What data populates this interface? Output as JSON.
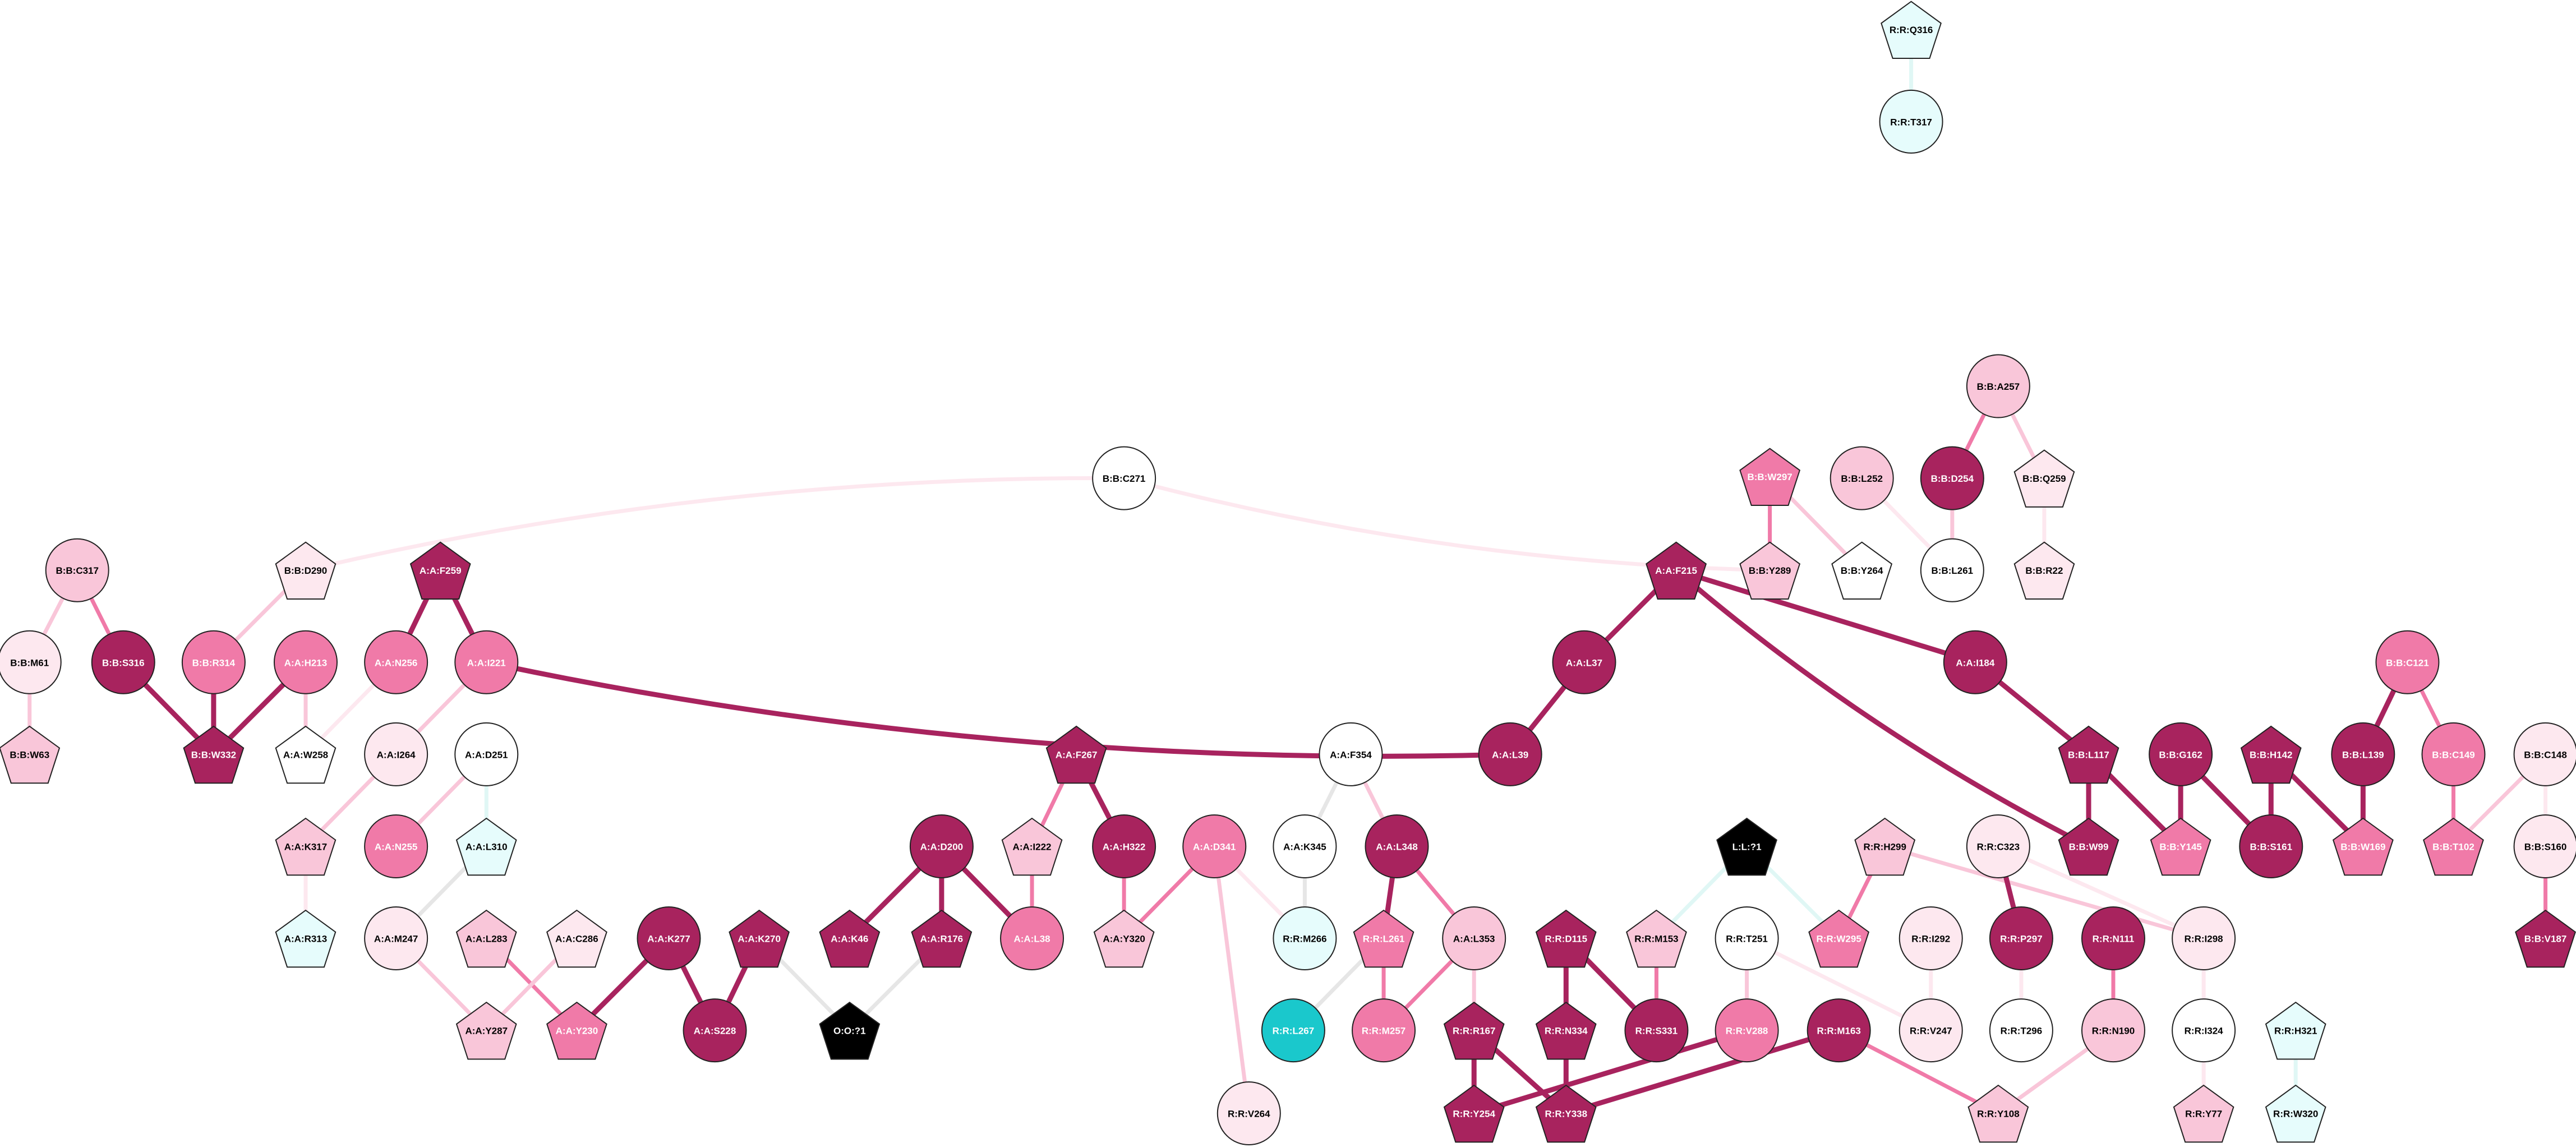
{
  "nodes": [
    {
      "label": "R:R:Q316",
      "shape": "pentagon",
      "color": "#e6fcfc"
    },
    {
      "label": "R:R:T317",
      "shape": "circle",
      "color": "#e6fcfc"
    },
    {
      "label": "B:B:A257",
      "shape": "circle",
      "color": "#f9c6d9"
    },
    {
      "label": "B:B:W297",
      "shape": "pentagon",
      "color": "#f07aa8"
    },
    {
      "label": "B:B:L252",
      "shape": "circle",
      "color": "#f9c6d9"
    },
    {
      "label": "B:B:D254",
      "shape": "circle",
      "color": "#a8235e"
    },
    {
      "label": "B:B:Q259",
      "shape": "pentagon",
      "color": "#fde8ef"
    },
    {
      "label": "B:B:C271",
      "shape": "circle",
      "color": "#ffffff"
    },
    {
      "label": "B:B:Y289",
      "shape": "pentagon",
      "color": "#f9c6d9"
    },
    {
      "label": "B:B:Y264",
      "shape": "pentagon",
      "color": "#ffffff"
    },
    {
      "label": "B:B:L261",
      "shape": "circle",
      "color": "#ffffff"
    },
    {
      "label": "B:B:R22",
      "shape": "pentagon",
      "color": "#fde8ef"
    },
    {
      "label": "B:B:C317",
      "shape": "circle",
      "color": "#f9c6d9"
    },
    {
      "label": "B:B:D290",
      "shape": "pentagon",
      "color": "#fde8ef"
    },
    {
      "label": "A:A:F259",
      "shape": "pentagon",
      "color": "#a8235e"
    },
    {
      "label": "A:A:F215",
      "shape": "pentagon",
      "color": "#a8235e"
    },
    {
      "label": "B:B:M61",
      "shape": "circle",
      "color": "#fde8ef"
    },
    {
      "label": "B:B:S316",
      "shape": "circle",
      "color": "#a8235e"
    },
    {
      "label": "B:B:R314",
      "shape": "circle",
      "color": "#f07aa8"
    },
    {
      "label": "A:A:H213",
      "shape": "circle",
      "color": "#f07aa8"
    },
    {
      "label": "A:A:N256",
      "shape": "circle",
      "color": "#f07aa8"
    },
    {
      "label": "A:A:I221",
      "shape": "circle",
      "color": "#f07aa8"
    },
    {
      "label": "A:A:L37",
      "shape": "circle",
      "color": "#a8235e"
    },
    {
      "label": "A:A:I184",
      "shape": "circle",
      "color": "#a8235e"
    },
    {
      "label": "B:B:C121",
      "shape": "circle",
      "color": "#f07aa8"
    },
    {
      "label": "B:B:W63",
      "shape": "pentagon",
      "color": "#f9c6d9"
    },
    {
      "label": "B:B:W332",
      "shape": "pentagon",
      "color": "#a8235e"
    },
    {
      "label": "A:A:W258",
      "shape": "pentagon",
      "color": "#ffffff"
    },
    {
      "label": "A:A:I264",
      "shape": "circle",
      "color": "#fde8ef"
    },
    {
      "label": "A:A:D251",
      "shape": "circle",
      "color": "#ffffff"
    },
    {
      "label": "A:A:F267",
      "shape": "pentagon",
      "color": "#a8235e"
    },
    {
      "label": "A:A:F354",
      "shape": "circle",
      "color": "#ffffff"
    },
    {
      "label": "A:A:L39",
      "shape": "circle",
      "color": "#a8235e"
    },
    {
      "label": "B:B:L117",
      "shape": "pentagon",
      "color": "#a8235e"
    },
    {
      "label": "B:B:G162",
      "shape": "circle",
      "color": "#a8235e"
    },
    {
      "label": "B:B:H142",
      "shape": "pentagon",
      "color": "#a8235e"
    },
    {
      "label": "B:B:L139",
      "shape": "circle",
      "color": "#a8235e"
    },
    {
      "label": "B:B:C149",
      "shape": "circle",
      "color": "#f07aa8"
    },
    {
      "label": "B:B:C148",
      "shape": "circle",
      "color": "#fde8ef"
    },
    {
      "label": "A:A:K317",
      "shape": "pentagon",
      "color": "#f9c6d9"
    },
    {
      "label": "A:A:N255",
      "shape": "circle",
      "color": "#f07aa8"
    },
    {
      "label": "A:A:L310",
      "shape": "pentagon",
      "color": "#e6fcfc"
    },
    {
      "label": "A:A:D200",
      "shape": "circle",
      "color": "#a8235e"
    },
    {
      "label": "A:A:I222",
      "shape": "pentagon",
      "color": "#f9c6d9"
    },
    {
      "label": "A:A:H322",
      "shape": "circle",
      "color": "#a8235e"
    },
    {
      "label": "A:A:D341",
      "shape": "circle",
      "color": "#f07aa8"
    },
    {
      "label": "A:A:K345",
      "shape": "circle",
      "color": "#ffffff"
    },
    {
      "label": "A:A:L348",
      "shape": "circle",
      "color": "#a8235e"
    },
    {
      "label": "L:L:?1",
      "shape": "pentagon",
      "color": "#000000"
    },
    {
      "label": "R:R:H299",
      "shape": "pentagon",
      "color": "#f9c6d9"
    },
    {
      "label": "R:R:C323",
      "shape": "circle",
      "color": "#fde8ef"
    },
    {
      "label": "B:B:W99",
      "shape": "pentagon",
      "color": "#a8235e"
    },
    {
      "label": "B:B:Y145",
      "shape": "pentagon",
      "color": "#f07aa8"
    },
    {
      "label": "B:B:S161",
      "shape": "circle",
      "color": "#a8235e"
    },
    {
      "label": "B:B:W169",
      "shape": "pentagon",
      "color": "#f07aa8"
    },
    {
      "label": "B:B:T102",
      "shape": "pentagon",
      "color": "#f07aa8"
    },
    {
      "label": "B:B:S160",
      "shape": "circle",
      "color": "#fde8ef"
    },
    {
      "label": "A:A:R313",
      "shape": "pentagon",
      "color": "#e6fcfc"
    },
    {
      "label": "A:A:M247",
      "shape": "circle",
      "color": "#fde8ef"
    },
    {
      "label": "A:A:L283",
      "shape": "pentagon",
      "color": "#f9c6d9"
    },
    {
      "label": "A:A:C286",
      "shape": "pentagon",
      "color": "#fde8ef"
    },
    {
      "label": "A:A:K277",
      "shape": "circle",
      "color": "#a8235e"
    },
    {
      "label": "A:A:K270",
      "shape": "pentagon",
      "color": "#a8235e"
    },
    {
      "label": "A:A:K46",
      "shape": "pentagon",
      "color": "#a8235e"
    },
    {
      "label": "A:A:R176",
      "shape": "pentagon",
      "color": "#a8235e"
    },
    {
      "label": "A:A:L38",
      "shape": "circle",
      "color": "#f07aa8"
    },
    {
      "label": "A:A:Y320",
      "shape": "pentagon",
      "color": "#f9c6d9"
    },
    {
      "label": "R:R:M266",
      "shape": "circle",
      "color": "#e6fcfc"
    },
    {
      "label": "R:R:L261",
      "shape": "pentagon",
      "color": "#f07aa8"
    },
    {
      "label": "A:A:L353",
      "shape": "circle",
      "color": "#f9c6d9"
    },
    {
      "label": "R:R:D115",
      "shape": "pentagon",
      "color": "#a8235e"
    },
    {
      "label": "R:R:M153",
      "shape": "pentagon",
      "color": "#f9c6d9"
    },
    {
      "label": "R:R:T251",
      "shape": "circle",
      "color": "#ffffff"
    },
    {
      "label": "R:R:W295",
      "shape": "pentagon",
      "color": "#f07aa8"
    },
    {
      "label": "R:R:I292",
      "shape": "circle",
      "color": "#fde8ef"
    },
    {
      "label": "R:R:P297",
      "shape": "circle",
      "color": "#a8235e"
    },
    {
      "label": "R:R:N111",
      "shape": "circle",
      "color": "#a8235e"
    },
    {
      "label": "R:R:I298",
      "shape": "circle",
      "color": "#fde8ef"
    },
    {
      "label": "B:B:V187",
      "shape": "pentagon",
      "color": "#a8235e"
    },
    {
      "label": "A:A:Y287",
      "shape": "pentagon",
      "color": "#f9c6d9"
    },
    {
      "label": "A:A:Y230",
      "shape": "pentagon",
      "color": "#f07aa8"
    },
    {
      "label": "A:A:S228",
      "shape": "circle",
      "color": "#a8235e"
    },
    {
      "label": "O:O:?1",
      "shape": "pentagon",
      "color": "#000000"
    },
    {
      "label": "R:R:L267",
      "shape": "circle",
      "color": "#1ac8cc"
    },
    {
      "label": "R:R:M257",
      "shape": "circle",
      "color": "#f07aa8"
    },
    {
      "label": "R:R:R167",
      "shape": "pentagon",
      "color": "#a8235e"
    },
    {
      "label": "R:R:N334",
      "shape": "pentagon",
      "color": "#a8235e"
    },
    {
      "label": "R:R:S331",
      "shape": "circle",
      "color": "#a8235e"
    },
    {
      "label": "R:R:V288",
      "shape": "circle",
      "color": "#f07aa8"
    },
    {
      "label": "R:R:M163",
      "shape": "circle",
      "color": "#a8235e"
    },
    {
      "label": "R:R:V247",
      "shape": "circle",
      "color": "#fde8ef"
    },
    {
      "label": "R:R:T296",
      "shape": "circle",
      "color": "#ffffff"
    },
    {
      "label": "R:R:N190",
      "shape": "circle",
      "color": "#f9c6d9"
    },
    {
      "label": "R:R:I324",
      "shape": "circle",
      "color": "#ffffff"
    },
    {
      "label": "R:R:H321",
      "shape": "pentagon",
      "color": "#e6fcfc"
    },
    {
      "label": "R:R:V264",
      "shape": "circle",
      "color": "#fde8ef"
    },
    {
      "label": "R:R:Y254",
      "shape": "pentagon",
      "color": "#a8235e"
    },
    {
      "label": "R:R:Y338",
      "shape": "pentagon",
      "color": "#a8235e"
    },
    {
      "label": "R:R:Y108",
      "shape": "pentagon",
      "color": "#f9c6d9"
    },
    {
      "label": "R:R:Y77",
      "shape": "pentagon",
      "color": "#f9c6d9"
    },
    {
      "label": "R:R:W320",
      "shape": "pentagon",
      "color": "#e6fcfc"
    }
  ],
  "edges": [
    {
      "from": 0,
      "to": 1,
      "color": "#e0f7f5"
    },
    {
      "from": 2,
      "to": 5,
      "color": "#f07aa8"
    },
    {
      "from": 2,
      "to": 6,
      "color": "#f9c6d9"
    },
    {
      "from": 3,
      "to": 8,
      "color": "#f07aa8"
    },
    {
      "from": 4,
      "to": 10,
      "color": "#fde8ef"
    },
    {
      "from": 5,
      "to": 10,
      "color": "#f9c6d9"
    },
    {
      "from": 3,
      "to": 9,
      "color": "#f9c6d9"
    },
    {
      "from": 7,
      "to": 13,
      "color": "#fde8ef"
    },
    {
      "from": 7,
      "to": 8,
      "color": "#fde8ef"
    },
    {
      "from": 6,
      "to": 11,
      "color": "#fde8ef"
    },
    {
      "from": 12,
      "to": 16,
      "color": "#f9c6d9"
    },
    {
      "from": 12,
      "to": 17,
      "color": "#f07aa8"
    },
    {
      "from": 14,
      "to": 20,
      "color": "#a8235e"
    },
    {
      "from": 14,
      "to": 21,
      "color": "#a8235e"
    },
    {
      "from": 15,
      "to": 22,
      "color": "#a8235e"
    },
    {
      "from": 15,
      "to": 23,
      "color": "#a8235e"
    },
    {
      "from": 15,
      "to": 51,
      "color": "#a8235e"
    },
    {
      "from": 13,
      "to": 18,
      "color": "#f9c6d9"
    },
    {
      "from": 16,
      "to": 25,
      "color": "#f9c6d9"
    },
    {
      "from": 17,
      "to": 26,
      "color": "#a8235e"
    },
    {
      "from": 18,
      "to": 26,
      "color": "#a8235e"
    },
    {
      "from": 19,
      "to": 26,
      "color": "#a8235e"
    },
    {
      "from": 19,
      "to": 27,
      "color": "#f9c6d9"
    },
    {
      "from": 20,
      "to": 27,
      "color": "#fde8ef"
    },
    {
      "from": 21,
      "to": 32,
      "color": "#a8235e"
    },
    {
      "from": 21,
      "to": 28,
      "color": "#f9c6d9"
    },
    {
      "from": 28,
      "to": 39,
      "color": "#f9c6d9"
    },
    {
      "from": 22,
      "to": 32,
      "color": "#a8235e"
    },
    {
      "from": 23,
      "to": 33,
      "color": "#a8235e"
    },
    {
      "from": 24,
      "to": 36,
      "color": "#a8235e"
    },
    {
      "from": 24,
      "to": 37,
      "color": "#f07aa8"
    },
    {
      "from": 29,
      "to": 40,
      "color": "#f9c6d9"
    },
    {
      "from": 29,
      "to": 41,
      "color": "#e0f7f5"
    },
    {
      "from": 30,
      "to": 43,
      "color": "#f07aa8"
    },
    {
      "from": 30,
      "to": 44,
      "color": "#a8235e"
    },
    {
      "from": 31,
      "to": 46,
      "color": "#e6e6e6"
    },
    {
      "from": 31,
      "to": 47,
      "color": "#f9c6d9"
    },
    {
      "from": 33,
      "to": 51,
      "color": "#a8235e"
    },
    {
      "from": 33,
      "to": 52,
      "color": "#a8235e"
    },
    {
      "from": 34,
      "to": 52,
      "color": "#a8235e"
    },
    {
      "from": 34,
      "to": 53,
      "color": "#a8235e"
    },
    {
      "from": 35,
      "to": 53,
      "color": "#a8235e"
    },
    {
      "from": 35,
      "to": 54,
      "color": "#a8235e"
    },
    {
      "from": 36,
      "to": 54,
      "color": "#a8235e"
    },
    {
      "from": 37,
      "to": 55,
      "color": "#f07aa8"
    },
    {
      "from": 38,
      "to": 55,
      "color": "#f9c6d9"
    },
    {
      "from": 38,
      "to": 56,
      "color": "#fde8ef"
    },
    {
      "from": 39,
      "to": 57,
      "color": "#fde8ef"
    },
    {
      "from": 41,
      "to": 58,
      "color": "#e6e6e6"
    },
    {
      "from": 42,
      "to": 63,
      "color": "#a8235e"
    },
    {
      "from": 42,
      "to": 64,
      "color": "#a8235e"
    },
    {
      "from": 42,
      "to": 65,
      "color": "#a8235e"
    },
    {
      "from": 43,
      "to": 65,
      "color": "#f07aa8"
    },
    {
      "from": 44,
      "to": 66,
      "color": "#f07aa8"
    },
    {
      "from": 45,
      "to": 66,
      "color": "#f07aa8"
    },
    {
      "from": 45,
      "to": 95,
      "color": "#f9c6d9"
    },
    {
      "from": 45,
      "to": 67,
      "color": "#fde8ef"
    },
    {
      "from": 46,
      "to": 67,
      "color": "#e6e6e6"
    },
    {
      "from": 47,
      "to": 68,
      "color": "#a8235e"
    },
    {
      "from": 47,
      "to": 69,
      "color": "#f07aa8"
    },
    {
      "from": 48,
      "to": 71,
      "color": "#e0f7f5"
    },
    {
      "from": 48,
      "to": 73,
      "color": "#e0f7f5"
    },
    {
      "from": 49,
      "to": 73,
      "color": "#f07aa8"
    },
    {
      "from": 49,
      "to": 77,
      "color": "#f9c6d9"
    },
    {
      "from": 50,
      "to": 77,
      "color": "#fde8ef"
    },
    {
      "from": 50,
      "to": 75,
      "color": "#a8235e"
    },
    {
      "from": 56,
      "to": 78,
      "color": "#f07aa8"
    },
    {
      "from": 58,
      "to": 79,
      "color": "#f9c6d9"
    },
    {
      "from": 59,
      "to": 80,
      "color": "#f07aa8"
    },
    {
      "from": 60,
      "to": 79,
      "color": "#f9c6d9"
    },
    {
      "from": 61,
      "to": 80,
      "color": "#a8235e"
    },
    {
      "from": 61,
      "to": 81,
      "color": "#a8235e"
    },
    {
      "from": 62,
      "to": 81,
      "color": "#a8235e"
    },
    {
      "from": 62,
      "to": 82,
      "color": "#e6e6e6"
    },
    {
      "from": 64,
      "to": 82,
      "color": "#e6e6e6"
    },
    {
      "from": 68,
      "to": 84,
      "color": "#f07aa8"
    },
    {
      "from": 69,
      "to": 84,
      "color": "#f07aa8"
    },
    {
      "from": 68,
      "to": 83,
      "color": "#e6e6e6"
    },
    {
      "from": 69,
      "to": 85,
      "color": "#f9c6d9"
    },
    {
      "from": 70,
      "to": 86,
      "color": "#a8235e"
    },
    {
      "from": 70,
      "to": 87,
      "color": "#a8235e"
    },
    {
      "from": 71,
      "to": 87,
      "color": "#f07aa8"
    },
    {
      "from": 72,
      "to": 88,
      "color": "#f9c6d9"
    },
    {
      "from": 72,
      "to": 90,
      "color": "#fde8ef"
    },
    {
      "from": 74,
      "to": 90,
      "color": "#fde8ef"
    },
    {
      "from": 75,
      "to": 91,
      "color": "#fde8ef"
    },
    {
      "from": 76,
      "to": 92,
      "color": "#f07aa8"
    },
    {
      "from": 77,
      "to": 93,
      "color": "#fde8ef"
    },
    {
      "from": 85,
      "to": 96,
      "color": "#a8235e"
    },
    {
      "from": 85,
      "to": 97,
      "color": "#a8235e"
    },
    {
      "from": 86,
      "to": 97,
      "color": "#a8235e"
    },
    {
      "from": 88,
      "to": 96,
      "color": "#a8235e"
    },
    {
      "from": 89,
      "to": 97,
      "color": "#a8235e"
    },
    {
      "from": 89,
      "to": 98,
      "color": "#f07aa8"
    },
    {
      "from": 92,
      "to": 98,
      "color": "#f9c6d9"
    },
    {
      "from": 93,
      "to": 99,
      "color": "#fde8ef"
    },
    {
      "from": 94,
      "to": 100,
      "color": "#e0f7f5"
    }
  ]
}
